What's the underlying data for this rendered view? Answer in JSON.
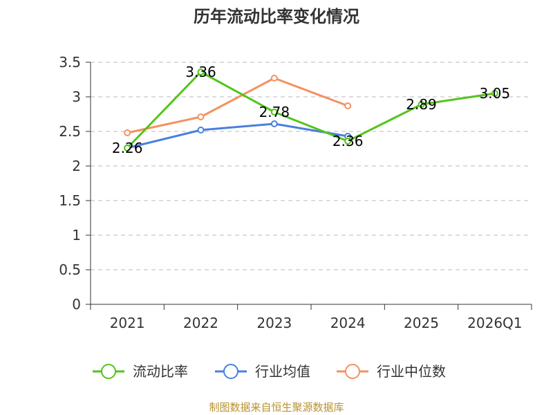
{
  "chart_data": {
    "type": "line",
    "title": "历年流动比率变化情况",
    "categories": [
      "2021",
      "2022",
      "2023",
      "2024",
      "2025",
      "2026Q1"
    ],
    "y_ticks": [
      "0",
      "0.5",
      "1",
      "1.5",
      "2",
      "2.5",
      "3",
      "3.5"
    ],
    "ylim": [
      0,
      3.5
    ],
    "grid": true,
    "legend_position": "bottom",
    "series": [
      {
        "name": "流动比率",
        "color": "#52c41a",
        "values": [
          2.26,
          3.36,
          2.78,
          2.36,
          2.89,
          3.05
        ],
        "labels": [
          "2.26",
          "3.36",
          "2.78",
          "2.36",
          "2.89",
          "3.05"
        ]
      },
      {
        "name": "行业均值",
        "color": "#4a7fdc",
        "values": [
          2.26,
          2.52,
          2.61,
          2.43,
          null,
          null
        ]
      },
      {
        "name": "行业中位数",
        "color": "#f4915f",
        "values": [
          2.48,
          2.71,
          3.27,
          2.87,
          null,
          null
        ]
      }
    ]
  },
  "footer": {
    "source": "制图数据来自恒生聚源数据库"
  }
}
